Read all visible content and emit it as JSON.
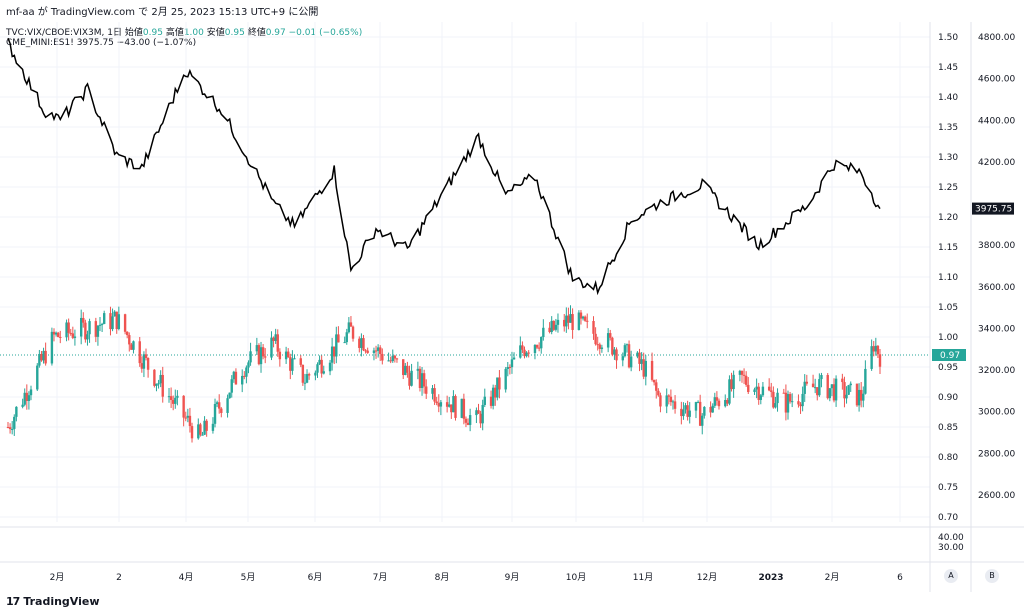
{
  "header": {
    "publish_line": "mf-aa が TradingView.com で 2月 25, 2023 15:13 UTC+9 に公開"
  },
  "legend_vix": {
    "symbol": "TVC:VIX/CBOE:VIX3M, 1日",
    "open_label": "始値",
    "open": "0.95",
    "high_label": "高値",
    "high": "1.00",
    "low_label": "安値",
    "low": "0.95",
    "close_label": "終値",
    "close": "0.97",
    "change": "−0.01 (−0.65%)"
  },
  "legend_es": {
    "symbol": "CME_MINI:ES1!",
    "value": "3975.75",
    "change": "−43.00 (−1.07%)"
  },
  "axis": {
    "ratio_ticks": [
      "1.50",
      "1.45",
      "1.40",
      "1.35",
      "1.30",
      "1.25",
      "1.20",
      "1.15",
      "1.10",
      "1.05",
      "1.00",
      "0.95",
      "0.90",
      "0.85",
      "0.80",
      "0.75",
      "0.70"
    ],
    "es_ticks": [
      "4800.00",
      "4600.00",
      "4400.00",
      "4200.00",
      "3800.00",
      "3600.00",
      "3400.00",
      "3200.00",
      "3000.00",
      "2800.00",
      "2600.00"
    ],
    "bottom_pane_ticks": [
      "40.00",
      "30.00"
    ],
    "x_labels": [
      "2月",
      "2",
      "4月",
      "5月",
      "6月",
      "7月",
      "8月",
      "9月",
      "10月",
      "11月",
      "12月",
      "2023",
      "2月",
      "6"
    ],
    "last_ratio_label": "0.97",
    "last_es_label": "3975.75",
    "scale_buttons": [
      "A",
      "B"
    ]
  },
  "footer": {
    "brand": "TradingView",
    "logo": "17"
  },
  "colors": {
    "up": "#26a69a",
    "down": "#ef5350",
    "line": "#000000",
    "grid": "#f0f3fa"
  },
  "chart_data": {
    "type": "candlestick_with_line_overlay",
    "ratio_range": [
      0.7,
      1.5
    ],
    "es_range": [
      2600,
      4800
    ],
    "x_start": "2022-01",
    "x_end": "2023-02-24",
    "es_series_keypoints": [
      {
        "date": "2022-01-03",
        "value": 4770
      },
      {
        "date": "2022-01-20",
        "value": 4450
      },
      {
        "date": "2022-01-28",
        "value": 4400
      },
      {
        "date": "2022-02-10",
        "value": 4550
      },
      {
        "date": "2022-02-24",
        "value": 4230
      },
      {
        "date": "2022-03-08",
        "value": 4170
      },
      {
        "date": "2022-03-29",
        "value": 4640
      },
      {
        "date": "2022-04-15",
        "value": 4450
      },
      {
        "date": "2022-05-10",
        "value": 4000
      },
      {
        "date": "2022-05-20",
        "value": 3890
      },
      {
        "date": "2022-06-08",
        "value": 4160
      },
      {
        "date": "2022-06-16",
        "value": 3680
      },
      {
        "date": "2022-06-28",
        "value": 3880
      },
      {
        "date": "2022-07-13",
        "value": 3780
      },
      {
        "date": "2022-08-16",
        "value": 4320
      },
      {
        "date": "2022-08-29",
        "value": 4040
      },
      {
        "date": "2022-09-12",
        "value": 4130
      },
      {
        "date": "2022-09-30",
        "value": 3640
      },
      {
        "date": "2022-10-12",
        "value": 3590
      },
      {
        "date": "2022-10-28",
        "value": 3920
      },
      {
        "date": "2022-11-10",
        "value": 4000
      },
      {
        "date": "2022-12-01",
        "value": 4090
      },
      {
        "date": "2022-12-28",
        "value": 3800
      },
      {
        "date": "2023-01-20",
        "value": 3990
      },
      {
        "date": "2023-02-02",
        "value": 4190
      },
      {
        "date": "2023-02-15",
        "value": 4150
      },
      {
        "date": "2023-02-24",
        "value": 3975.75
      }
    ],
    "ratio_closes_keypoints": [
      {
        "date": "2022-01-03",
        "value": 0.85
      },
      {
        "date": "2022-01-25",
        "value": 1.0
      },
      {
        "date": "2022-02-24",
        "value": 1.03
      },
      {
        "date": "2022-03-15",
        "value": 0.93
      },
      {
        "date": "2022-04-05",
        "value": 0.83
      },
      {
        "date": "2022-04-25",
        "value": 0.95
      },
      {
        "date": "2022-05-10",
        "value": 0.99
      },
      {
        "date": "2022-05-25",
        "value": 0.93
      },
      {
        "date": "2022-06-16",
        "value": 1.01
      },
      {
        "date": "2022-07-05",
        "value": 0.96
      },
      {
        "date": "2022-08-15",
        "value": 0.86
      },
      {
        "date": "2022-09-06",
        "value": 0.98
      },
      {
        "date": "2022-09-29",
        "value": 1.03
      },
      {
        "date": "2022-10-13",
        "value": 1.0
      },
      {
        "date": "2022-11-03",
        "value": 0.95
      },
      {
        "date": "2022-11-10",
        "value": 0.9
      },
      {
        "date": "2022-12-01",
        "value": 0.87
      },
      {
        "date": "2022-12-20",
        "value": 0.93
      },
      {
        "date": "2023-01-10",
        "value": 0.89
      },
      {
        "date": "2023-01-25",
        "value": 0.92
      },
      {
        "date": "2023-02-15",
        "value": 0.9
      },
      {
        "date": "2023-02-21",
        "value": 0.99
      },
      {
        "date": "2023-02-24",
        "value": 0.97
      }
    ]
  }
}
